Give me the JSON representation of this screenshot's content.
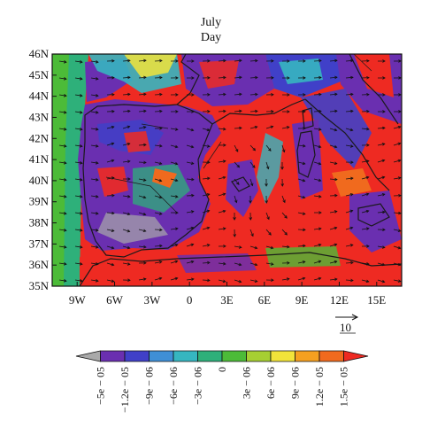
{
  "title": {
    "line1": "July",
    "line2": "Day"
  },
  "map": {
    "lat_labels": [
      "46N",
      "45N",
      "44N",
      "43N",
      "42N",
      "41N",
      "40N",
      "39N",
      "38N",
      "37N",
      "36N",
      "35N"
    ],
    "lon_labels": [
      "9W",
      "6W",
      "3W",
      "0",
      "3E",
      "6E",
      "9E",
      "12E",
      "15E"
    ],
    "lon_range": [
      -11,
      17
    ],
    "lat_range": [
      35,
      46
    ]
  },
  "vector_reference": {
    "label": "10"
  },
  "colorbar": {
    "tick_labels": [
      "−5e − 05",
      "−1.2e − 05",
      "−9e − 06",
      "−6e − 06",
      "−3e − 06",
      "0",
      "3e − 06",
      "6e − 06",
      "9e − 06",
      "1.2e − 05",
      "1.5e − 05"
    ],
    "colors": [
      "#a9a9a9",
      "#6a2fb0",
      "#4040c8",
      "#3f8fd6",
      "#36b6c0",
      "#2eb07a",
      "#4cbb38",
      "#a6cf32",
      "#f2e43a",
      "#f5a020",
      "#f06a1e",
      "#ee2a22"
    ]
  }
}
